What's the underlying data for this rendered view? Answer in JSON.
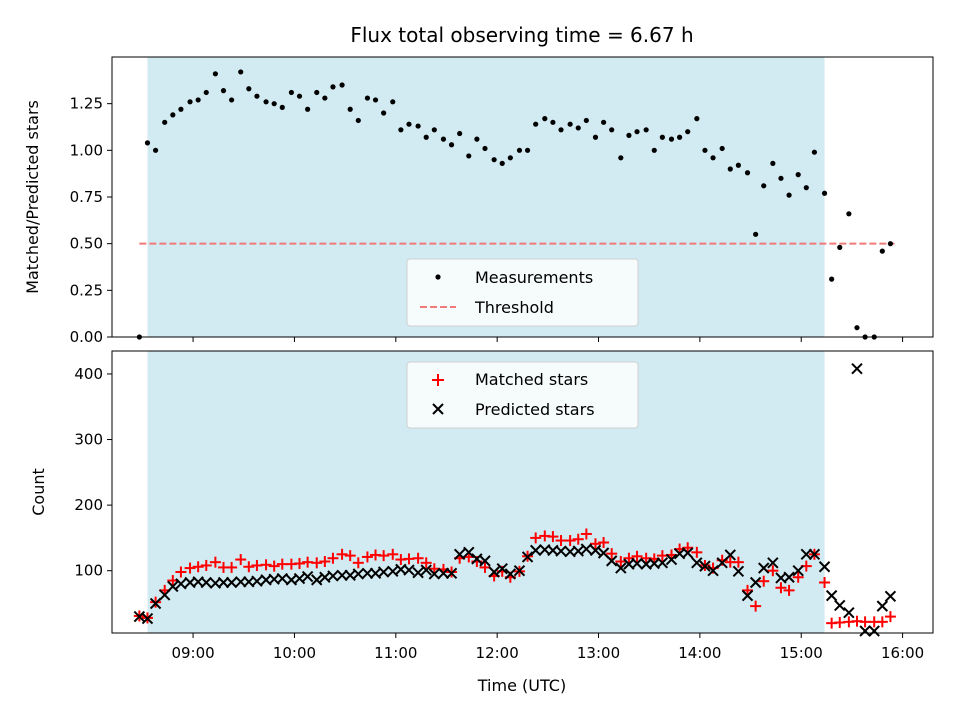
{
  "title": "Flux total observing time = 6.67 h",
  "colors": {
    "shade": "#add8e6",
    "measurement": "#000000",
    "threshold": "#f07a7a",
    "matched": "#ff0000",
    "predicted": "#000000"
  },
  "chart_data": [
    {
      "type": "scatter",
      "ylabel": "Matched/Predicted stars",
      "xlim": [
        8.2,
        16.3
      ],
      "ylim": [
        0,
        1.5
      ],
      "grid": false,
      "yticks": [
        {
          "value": 0.0,
          "label": "0.00"
        },
        {
          "value": 0.25,
          "label": "0.25"
        },
        {
          "value": 0.5,
          "label": "0.50"
        },
        {
          "value": 0.75,
          "label": "0.75"
        },
        {
          "value": 1.0,
          "label": "1.00"
        },
        {
          "value": 1.25,
          "label": "1.25"
        }
      ],
      "shaded_interval": [
        8.55,
        15.23
      ],
      "threshold": 0.5,
      "threshold_range": [
        8.47,
        15.92
      ],
      "legend": {
        "placement": "lower-center",
        "entries": [
          {
            "label": "Measurements",
            "marker": "dot"
          },
          {
            "label": "Threshold",
            "marker": "dashed-line"
          }
        ]
      },
      "series": [
        {
          "name": "Measurements",
          "x": [
            8.47,
            8.55,
            8.63,
            8.72,
            8.8,
            8.88,
            8.97,
            9.05,
            9.13,
            9.22,
            9.3,
            9.38,
            9.47,
            9.55,
            9.63,
            9.72,
            9.8,
            9.88,
            9.97,
            10.05,
            10.13,
            10.22,
            10.3,
            10.38,
            10.47,
            10.55,
            10.63,
            10.72,
            10.8,
            10.88,
            10.97,
            11.05,
            11.13,
            11.22,
            11.3,
            11.38,
            11.47,
            11.55,
            11.63,
            11.72,
            11.8,
            11.88,
            11.97,
            12.05,
            12.13,
            12.22,
            12.3,
            12.38,
            12.47,
            12.55,
            12.63,
            12.72,
            12.8,
            12.88,
            12.97,
            13.05,
            13.13,
            13.22,
            13.3,
            13.38,
            13.47,
            13.55,
            13.63,
            13.72,
            13.8,
            13.88,
            13.97,
            14.05,
            14.13,
            14.22,
            14.3,
            14.38,
            14.47,
            14.55,
            14.63,
            14.72,
            14.8,
            14.88,
            14.97,
            15.05,
            15.13,
            15.23,
            15.3,
            15.38,
            15.47,
            15.55,
            15.63,
            15.72,
            15.8,
            15.88
          ],
          "y": [
            0.0,
            1.04,
            1.0,
            1.15,
            1.19,
            1.22,
            1.26,
            1.27,
            1.31,
            1.41,
            1.32,
            1.27,
            1.42,
            1.33,
            1.29,
            1.26,
            1.25,
            1.23,
            1.31,
            1.29,
            1.22,
            1.31,
            1.28,
            1.34,
            1.35,
            1.22,
            1.16,
            1.28,
            1.27,
            1.2,
            1.26,
            1.11,
            1.14,
            1.13,
            1.07,
            1.11,
            1.06,
            1.03,
            1.09,
            0.97,
            1.06,
            1.01,
            0.95,
            0.93,
            0.96,
            1.0,
            1.0,
            1.14,
            1.17,
            1.15,
            1.11,
            1.14,
            1.12,
            1.16,
            1.07,
            1.15,
            1.11,
            0.96,
            1.08,
            1.1,
            1.11,
            1.0,
            1.07,
            1.06,
            1.07,
            1.1,
            1.17,
            1.0,
            0.96,
            1.01,
            0.9,
            0.92,
            0.88,
            0.55,
            0.81,
            0.93,
            0.85,
            0.76,
            0.87,
            0.8,
            0.99,
            0.77,
            0.31,
            0.48,
            0.66,
            0.05,
            0.0,
            0.0,
            0.46,
            0.5
          ]
        }
      ]
    },
    {
      "type": "scatter",
      "xlabel": "Time (UTC)",
      "ylabel": "Count",
      "xlim": [
        8.2,
        16.3
      ],
      "ylim": [
        5,
        435
      ],
      "grid": false,
      "xticks": [
        {
          "value": 9,
          "label": "09:00"
        },
        {
          "value": 10,
          "label": "10:00"
        },
        {
          "value": 11,
          "label": "11:00"
        },
        {
          "value": 12,
          "label": "12:00"
        },
        {
          "value": 13,
          "label": "13:00"
        },
        {
          "value": 14,
          "label": "14:00"
        },
        {
          "value": 15,
          "label": "15:00"
        },
        {
          "value": 16,
          "label": "16:00"
        }
      ],
      "yticks": [
        {
          "value": 100,
          "label": "100"
        },
        {
          "value": 200,
          "label": "200"
        },
        {
          "value": 300,
          "label": "300"
        },
        {
          "value": 400,
          "label": "400"
        }
      ],
      "shaded_interval": [
        8.55,
        15.23
      ],
      "legend": {
        "placement": "upper-center",
        "entries": [
          {
            "label": "Matched stars",
            "marker": "plus"
          },
          {
            "label": "Predicted stars",
            "marker": "x"
          }
        ]
      },
      "series": [
        {
          "name": "Matched stars",
          "x": [
            8.47,
            8.55,
            8.63,
            8.72,
            8.8,
            8.88,
            8.97,
            9.05,
            9.13,
            9.22,
            9.3,
            9.38,
            9.47,
            9.55,
            9.63,
            9.72,
            9.8,
            9.88,
            9.97,
            10.05,
            10.13,
            10.22,
            10.3,
            10.38,
            10.47,
            10.55,
            10.63,
            10.72,
            10.8,
            10.88,
            10.97,
            11.05,
            11.13,
            11.22,
            11.3,
            11.38,
            11.47,
            11.55,
            11.63,
            11.72,
            11.8,
            11.88,
            11.97,
            12.05,
            12.13,
            12.22,
            12.3,
            12.38,
            12.47,
            12.55,
            12.63,
            12.72,
            12.8,
            12.88,
            12.97,
            13.05,
            13.13,
            13.22,
            13.3,
            13.38,
            13.47,
            13.55,
            13.63,
            13.72,
            13.8,
            13.88,
            13.97,
            14.05,
            14.13,
            14.22,
            14.3,
            14.38,
            14.47,
            14.55,
            14.63,
            14.72,
            14.8,
            14.88,
            14.97,
            15.05,
            15.13,
            15.23,
            15.3,
            15.38,
            15.47,
            15.55,
            15.63,
            15.72,
            15.8,
            15.88
          ],
          "y": [
            31,
            28,
            52,
            70,
            85,
            98,
            104,
            106,
            108,
            113,
            105,
            105,
            117,
            106,
            108,
            109,
            107,
            110,
            110,
            111,
            113,
            112,
            114,
            119,
            125,
            123,
            112,
            121,
            124,
            123,
            125,
            117,
            118,
            119,
            112,
            103,
            102,
            98,
            119,
            121,
            114,
            105,
            92,
            99,
            90,
            99,
            122,
            150,
            153,
            152,
            146,
            146,
            148,
            156,
            141,
            143,
            126,
            114,
            119,
            122,
            119,
            118,
            123,
            124,
            133,
            135,
            128,
            108,
            104,
            116,
            113,
            113,
            70,
            46,
            84,
            100,
            74,
            70,
            90,
            107,
            125,
            82,
            20,
            21,
            22,
            23,
            22,
            22,
            22,
            30
          ]
        },
        {
          "name": "Predicted stars",
          "x": [
            8.47,
            8.55,
            8.63,
            8.72,
            8.8,
            8.88,
            8.97,
            9.05,
            9.13,
            9.22,
            9.3,
            9.38,
            9.47,
            9.55,
            9.63,
            9.72,
            9.8,
            9.88,
            9.97,
            10.05,
            10.13,
            10.22,
            10.3,
            10.38,
            10.47,
            10.55,
            10.63,
            10.72,
            10.8,
            10.88,
            10.97,
            11.05,
            11.13,
            11.22,
            11.3,
            11.38,
            11.47,
            11.55,
            11.63,
            11.72,
            11.8,
            11.88,
            11.97,
            12.05,
            12.13,
            12.22,
            12.3,
            12.38,
            12.47,
            12.55,
            12.63,
            12.72,
            12.8,
            12.88,
            12.97,
            13.05,
            13.13,
            13.22,
            13.3,
            13.38,
            13.47,
            13.55,
            13.63,
            13.72,
            13.8,
            13.88,
            13.97,
            14.05,
            14.13,
            14.22,
            14.3,
            14.38,
            14.47,
            14.55,
            14.63,
            14.72,
            14.8,
            14.88,
            14.97,
            15.05,
            15.13,
            15.23,
            15.3,
            15.38,
            15.47,
            15.55,
            15.63,
            15.72,
            15.8,
            15.88
          ],
          "y": [
            30,
            27,
            50,
            63,
            76,
            80,
            82,
            83,
            82,
            81,
            82,
            82,
            83,
            83,
            84,
            86,
            87,
            88,
            86,
            88,
            91,
            86,
            90,
            92,
            93,
            93,
            95,
            96,
            96,
            98,
            99,
            102,
            101,
            97,
            101,
            95,
            96,
            96,
            125,
            128,
            118,
            115,
            98,
            103,
            95,
            100,
            121,
            131,
            132,
            131,
            130,
            129,
            130,
            133,
            131,
            127,
            115,
            104,
            110,
            111,
            110,
            111,
            112,
            117,
            126,
            127,
            112,
            107,
            100,
            112,
            124,
            99,
            62,
            82,
            104,
            112,
            89,
            90,
            100,
            125,
            125,
            106,
            62,
            47,
            36,
            408,
            0,
            0,
            46,
            61
          ]
        }
      ]
    }
  ]
}
